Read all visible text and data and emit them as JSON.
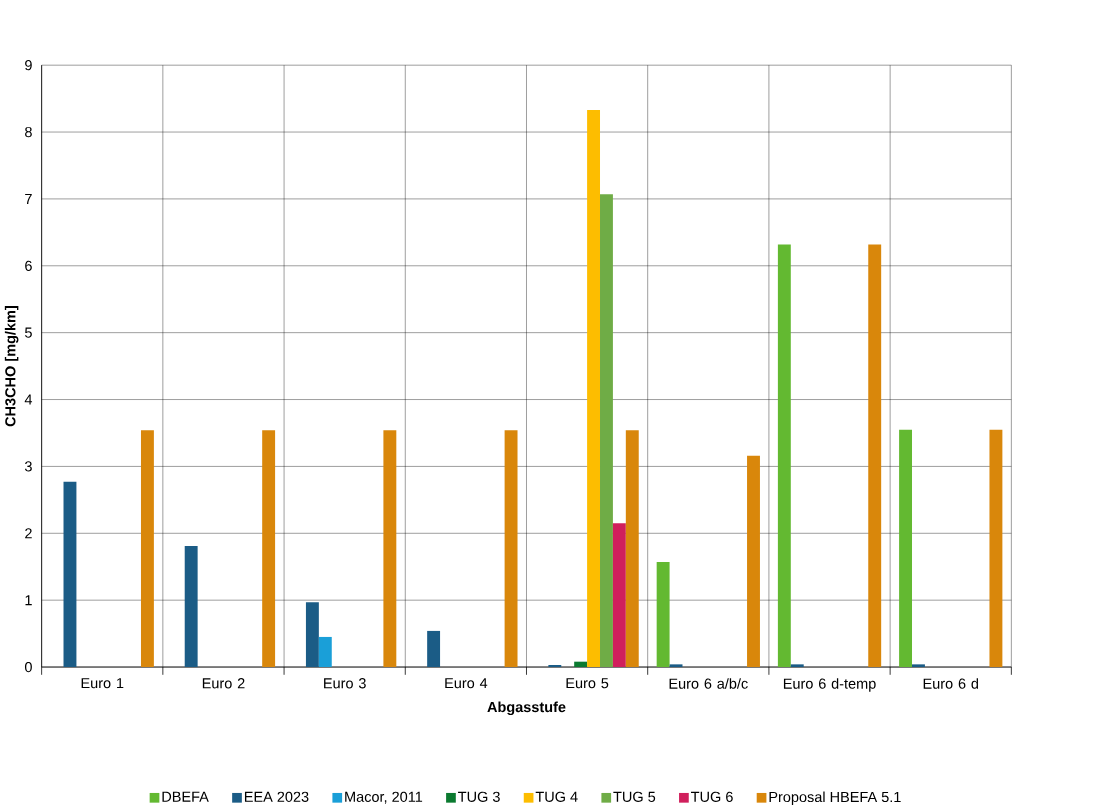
{
  "chart_data": {
    "type": "bar",
    "xlabel": "Abgasstufe",
    "ylabel": "CH3CHO [mg/km]",
    "categories": [
      "Euro 1",
      "Euro 2",
      "Euro 3",
      "Euro 4",
      "Euro 5",
      "Euro 6 a/b/c",
      "Euro 6 d-temp",
      "Euro 6 d"
    ],
    "series": [
      {
        "name": "DBEFA",
        "color": "#63b931",
        "values": [
          null,
          null,
          null,
          null,
          null,
          1.57,
          6.32,
          3.55
        ]
      },
      {
        "name": "EEA 2023",
        "color": "#1b5c86",
        "values": [
          2.77,
          1.81,
          0.97,
          0.54,
          0.03,
          0.04,
          0.04,
          0.04
        ]
      },
      {
        "name": "Macor, 2011",
        "color": "#1a9fd8",
        "values": [
          null,
          null,
          0.45,
          null,
          null,
          null,
          null,
          null
        ]
      },
      {
        "name": "TUG 3",
        "color": "#0b7a30",
        "values": [
          null,
          null,
          null,
          null,
          0.08,
          null,
          null,
          null
        ]
      },
      {
        "name": "TUG 4",
        "color": "#fdbd00",
        "values": [
          null,
          null,
          null,
          null,
          8.33,
          null,
          null,
          null
        ]
      },
      {
        "name": "TUG 5",
        "color": "#6fac46",
        "values": [
          null,
          null,
          null,
          null,
          7.07,
          null,
          null,
          null
        ]
      },
      {
        "name": "TUG 6",
        "color": "#d01f5c",
        "values": [
          null,
          null,
          null,
          null,
          2.15,
          null,
          null,
          null
        ]
      },
      {
        "name": "Proposal HBEFA 5.1",
        "color": "#d9870b",
        "values": [
          3.54,
          3.54,
          3.54,
          3.54,
          3.54,
          3.16,
          6.32,
          3.55
        ]
      }
    ],
    "ylim": [
      0,
      9
    ],
    "yticks": [
      0,
      1,
      2,
      3,
      4,
      5,
      6,
      7,
      8,
      9
    ],
    "grid": true,
    "legend": "bottom"
  }
}
